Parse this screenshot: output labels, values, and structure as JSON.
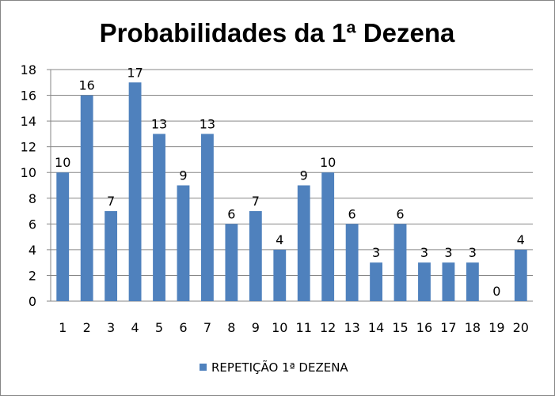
{
  "chart_data": {
    "type": "bar",
    "title": "Probabilidades da 1ª Dezena",
    "categories": [
      "1",
      "2",
      "3",
      "4",
      "5",
      "6",
      "7",
      "8",
      "9",
      "10",
      "11",
      "12",
      "13",
      "14",
      "15",
      "16",
      "17",
      "18",
      "19",
      "20"
    ],
    "series": [
      {
        "name": "REPETIÇÃO 1ª DEZENA",
        "values": [
          10,
          16,
          7,
          17,
          13,
          9,
          13,
          6,
          7,
          4,
          9,
          10,
          6,
          3,
          6,
          3,
          3,
          3,
          0,
          4
        ],
        "color": "#4f81bd"
      }
    ],
    "ylim": [
      0,
      18
    ],
    "yticks": [
      0,
      2,
      4,
      6,
      8,
      10,
      12,
      14,
      16,
      18
    ],
    "grid": true,
    "data_labels": true,
    "legend_position": "bottom"
  }
}
